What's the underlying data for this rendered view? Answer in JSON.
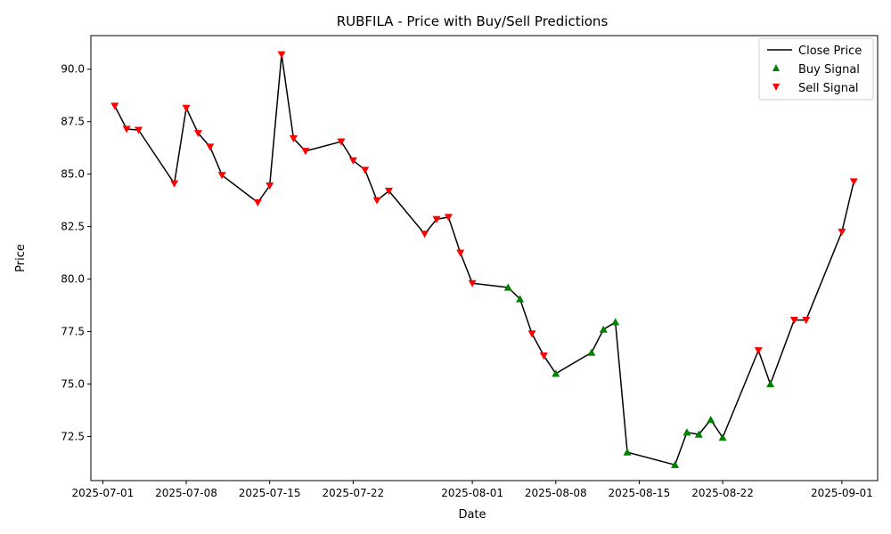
{
  "chart_data": {
    "type": "line",
    "title": "RUBFILA - Price with Buy/Sell Predictions",
    "xlabel": "Date",
    "ylabel": "Price",
    "xlim": [
      "2025-06-30",
      "2025-09-04"
    ],
    "ylim": [
      70.4,
      91.6
    ],
    "x_ticks": [
      "2025-07-01",
      "2025-07-08",
      "2025-07-15",
      "2025-07-22",
      "2025-08-01",
      "2025-08-08",
      "2025-08-15",
      "2025-08-22",
      "2025-09-01"
    ],
    "y_ticks": [
      72.5,
      75.0,
      77.5,
      80.0,
      82.5,
      85.0,
      87.5,
      90.0
    ],
    "y_tick_labels": [
      "72.5",
      "75.0",
      "77.5",
      "80.0",
      "82.5",
      "85.0",
      "87.5",
      "90.0"
    ],
    "grid": false,
    "legend_position": "top-right",
    "series": [
      {
        "name": "Close Price",
        "color": "#000000",
        "points": [
          [
            "2025-07-02",
            88.25
          ],
          [
            "2025-07-03",
            87.15
          ],
          [
            "2025-07-04",
            87.1
          ],
          [
            "2025-07-07",
            84.55
          ],
          [
            "2025-07-08",
            88.15
          ],
          [
            "2025-07-09",
            86.95
          ],
          [
            "2025-07-10",
            86.3
          ],
          [
            "2025-07-11",
            84.95
          ],
          [
            "2025-07-14",
            83.65
          ],
          [
            "2025-07-15",
            84.45
          ],
          [
            "2025-07-16",
            90.7
          ],
          [
            "2025-07-17",
            86.7
          ],
          [
            "2025-07-18",
            86.1
          ],
          [
            "2025-07-21",
            86.55
          ],
          [
            "2025-07-22",
            85.65
          ],
          [
            "2025-07-23",
            85.2
          ],
          [
            "2025-07-24",
            83.75
          ],
          [
            "2025-07-25",
            84.2
          ],
          [
            "2025-07-28",
            82.15
          ],
          [
            "2025-07-29",
            82.85
          ],
          [
            "2025-07-30",
            82.95
          ],
          [
            "2025-07-31",
            81.25
          ],
          [
            "2025-08-01",
            79.8
          ],
          [
            "2025-08-04",
            79.6
          ],
          [
            "2025-08-05",
            79.05
          ],
          [
            "2025-08-06",
            77.4
          ],
          [
            "2025-08-07",
            76.35
          ],
          [
            "2025-08-08",
            75.5
          ],
          [
            "2025-08-11",
            76.5
          ],
          [
            "2025-08-12",
            77.6
          ],
          [
            "2025-08-13",
            77.95
          ],
          [
            "2025-08-14",
            71.75
          ],
          [
            "2025-08-18",
            71.15
          ],
          [
            "2025-08-19",
            72.7
          ],
          [
            "2025-08-20",
            72.6
          ],
          [
            "2025-08-21",
            73.3
          ],
          [
            "2025-08-22",
            72.45
          ],
          [
            "2025-08-25",
            76.6
          ],
          [
            "2025-08-26",
            75.0
          ],
          [
            "2025-08-28",
            78.05
          ],
          [
            "2025-08-29",
            78.05
          ],
          [
            "2025-09-01",
            82.25
          ],
          [
            "2025-09-02",
            84.65
          ]
        ]
      },
      {
        "name": "Buy Signal",
        "color": "#008000",
        "marker": "triangle-up",
        "points": [
          [
            "2025-08-04",
            79.6
          ],
          [
            "2025-08-05",
            79.05
          ],
          [
            "2025-08-08",
            75.5
          ],
          [
            "2025-08-11",
            76.5
          ],
          [
            "2025-08-12",
            77.6
          ],
          [
            "2025-08-13",
            77.95
          ],
          [
            "2025-08-14",
            71.75
          ],
          [
            "2025-08-18",
            71.15
          ],
          [
            "2025-08-19",
            72.7
          ],
          [
            "2025-08-20",
            72.6
          ],
          [
            "2025-08-21",
            73.3
          ],
          [
            "2025-08-22",
            72.45
          ],
          [
            "2025-08-26",
            75.0
          ]
        ]
      },
      {
        "name": "Sell Signal",
        "color": "#ff0000",
        "marker": "triangle-down",
        "points": [
          [
            "2025-07-02",
            88.25
          ],
          [
            "2025-07-03",
            87.15
          ],
          [
            "2025-07-04",
            87.1
          ],
          [
            "2025-07-07",
            84.55
          ],
          [
            "2025-07-08",
            88.15
          ],
          [
            "2025-07-09",
            86.95
          ],
          [
            "2025-07-10",
            86.3
          ],
          [
            "2025-07-11",
            84.95
          ],
          [
            "2025-07-14",
            83.65
          ],
          [
            "2025-07-15",
            84.45
          ],
          [
            "2025-07-16",
            90.7
          ],
          [
            "2025-07-17",
            86.7
          ],
          [
            "2025-07-18",
            86.1
          ],
          [
            "2025-07-21",
            86.55
          ],
          [
            "2025-07-22",
            85.65
          ],
          [
            "2025-07-23",
            85.2
          ],
          [
            "2025-07-24",
            83.75
          ],
          [
            "2025-07-25",
            84.2
          ],
          [
            "2025-07-28",
            82.15
          ],
          [
            "2025-07-29",
            82.85
          ],
          [
            "2025-07-30",
            82.95
          ],
          [
            "2025-07-31",
            81.25
          ],
          [
            "2025-08-01",
            79.8
          ],
          [
            "2025-08-06",
            77.4
          ],
          [
            "2025-08-07",
            76.35
          ],
          [
            "2025-08-25",
            76.6
          ],
          [
            "2025-08-28",
            78.05
          ],
          [
            "2025-08-29",
            78.05
          ],
          [
            "2025-09-01",
            82.25
          ],
          [
            "2025-09-02",
            84.65
          ]
        ]
      }
    ]
  }
}
